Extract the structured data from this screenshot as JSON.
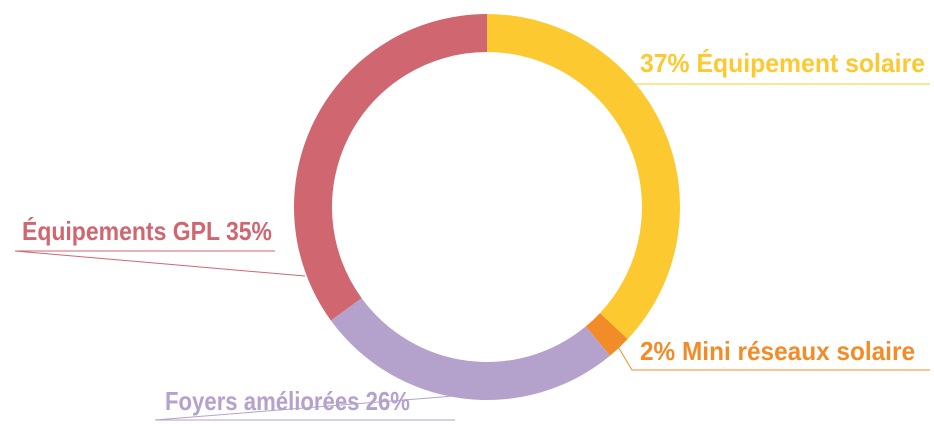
{
  "chart_data": {
    "type": "donut",
    "categories": [
      "Équipement solaire",
      "Mini réseaux solaire",
      "Foyers améliorées",
      "Équipements GPL"
    ],
    "values": [
      37,
      2,
      26,
      35
    ],
    "value_labels": [
      "37%",
      "2%",
      "26%",
      "35%"
    ],
    "colors": [
      "#fcc930",
      "#f28c28",
      "#b5a2cc",
      "#d06670"
    ]
  }
}
